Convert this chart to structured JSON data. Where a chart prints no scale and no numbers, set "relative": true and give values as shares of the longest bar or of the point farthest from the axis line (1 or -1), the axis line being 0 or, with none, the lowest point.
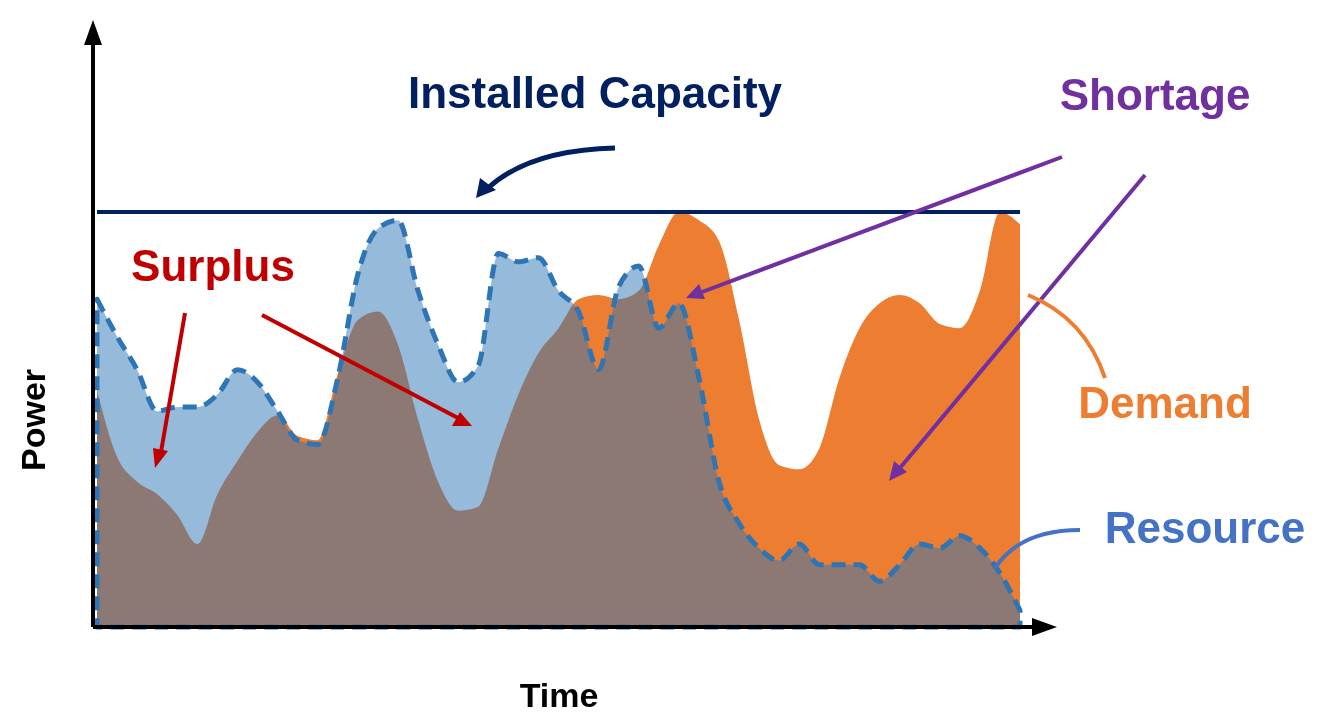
{
  "chart_data": {
    "type": "area",
    "relative": true,
    "xlabel": "Time",
    "ylabel": "Power",
    "legend": false,
    "grid": false,
    "categories": [
      null,
      null,
      null,
      null,
      null,
      null,
      null,
      null,
      null,
      null,
      null,
      null,
      null,
      null,
      null,
      null,
      null,
      null,
      null,
      null,
      null,
      null,
      null,
      null,
      null,
      null,
      null,
      null,
      null,
      null,
      null,
      null,
      null,
      null,
      null,
      null,
      null,
      null,
      null,
      null,
      null,
      null,
      null,
      null,
      null,
      null,
      null
    ],
    "series": [
      {
        "name": "Demand",
        "color": "#ed7d31",
        "values": [
          0.57,
          0.41,
          0.35,
          0.32,
          0.27,
          0.2,
          0.32,
          0.4,
          0.47,
          0.51,
          0.46,
          0.45,
          0.61,
          0.74,
          0.76,
          0.68,
          0.5,
          0.35,
          0.28,
          0.29,
          0.43,
          0.56,
          0.66,
          0.72,
          0.79,
          0.8,
          0.79,
          0.81,
          0.92,
          1.0,
          0.98,
          0.93,
          0.74,
          0.5,
          0.39,
          0.38,
          0.43,
          0.6,
          0.72,
          0.78,
          0.8,
          0.78,
          0.73,
          0.72,
          0.81,
          1.0,
          0.97
        ]
      },
      {
        "name": "Resource",
        "color": "#2e75b6",
        "line_style": "dashed",
        "values": [
          0.79,
          0.7,
          0.62,
          0.52,
          0.53,
          0.53,
          0.56,
          0.62,
          0.59,
          0.52,
          0.45,
          0.44,
          0.6,
          0.85,
          0.96,
          0.98,
          0.81,
          0.68,
          0.59,
          0.63,
          0.9,
          0.88,
          0.89,
          0.81,
          0.76,
          0.62,
          0.82,
          0.87,
          0.72,
          0.78,
          0.6,
          0.35,
          0.25,
          0.19,
          0.16,
          0.2,
          0.15,
          0.15,
          0.15,
          0.11,
          0.15,
          0.2,
          0.19,
          0.22,
          0.19,
          0.13,
          0.04
        ]
      }
    ],
    "ref_lines": [
      {
        "axis": "y",
        "value": 1.0,
        "label": "Installed Capacity",
        "color": "#002060"
      }
    ],
    "annotations": [
      "Surplus",
      "Shortage"
    ]
  }
}
